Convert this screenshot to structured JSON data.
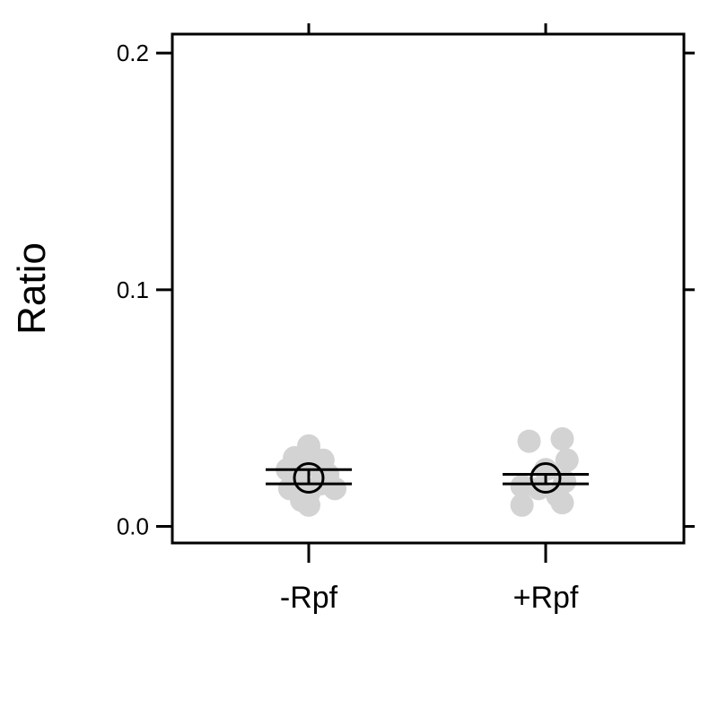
{
  "chart_data": {
    "type": "scatter",
    "title": "",
    "xlabel": "",
    "ylabel": "Ratio",
    "categories": [
      "-Rpf",
      "+Rpf"
    ],
    "ylim": [
      -0.007,
      0.208
    ],
    "yticks": [
      0.0,
      0.1,
      0.2
    ],
    "ytick_labels": [
      "0.0",
      "0.1",
      "0.2"
    ],
    "grid": false,
    "colors": {
      "points": "#d3d3d3",
      "summary": "#000000",
      "axes": "#000000"
    },
    "groups": [
      {
        "category": "-Rpf",
        "points": [
          {
            "offset": 0.0,
            "y": 0.034
          },
          {
            "offset": -0.06,
            "y": 0.029
          },
          {
            "offset": 0.06,
            "y": 0.028
          },
          {
            "offset": -0.09,
            "y": 0.024
          },
          {
            "offset": 0.08,
            "y": 0.022
          },
          {
            "offset": 0.0,
            "y": 0.026
          },
          {
            "offset": -0.05,
            "y": 0.02
          },
          {
            "offset": 0.05,
            "y": 0.018
          },
          {
            "offset": -0.08,
            "y": 0.016
          },
          {
            "offset": 0.11,
            "y": 0.016
          },
          {
            "offset": 0.0,
            "y": 0.014
          },
          {
            "offset": -0.03,
            "y": 0.011
          },
          {
            "offset": 0.0,
            "y": 0.009
          }
        ],
        "mean": 0.0205,
        "error_upper": 0.024,
        "error_lower": 0.018
      },
      {
        "category": "+Rpf",
        "points": [
          {
            "offset": -0.07,
            "y": 0.036
          },
          {
            "offset": 0.07,
            "y": 0.037
          },
          {
            "offset": 0.09,
            "y": 0.028
          },
          {
            "offset": 0.0,
            "y": 0.024
          },
          {
            "offset": -0.1,
            "y": 0.017
          },
          {
            "offset": 0.08,
            "y": 0.019
          },
          {
            "offset": -0.03,
            "y": 0.016
          },
          {
            "offset": 0.05,
            "y": 0.013
          },
          {
            "offset": -0.1,
            "y": 0.009
          },
          {
            "offset": 0.07,
            "y": 0.01
          }
        ],
        "mean": 0.0205,
        "error_upper": 0.022,
        "error_lower": 0.018
      }
    ]
  }
}
